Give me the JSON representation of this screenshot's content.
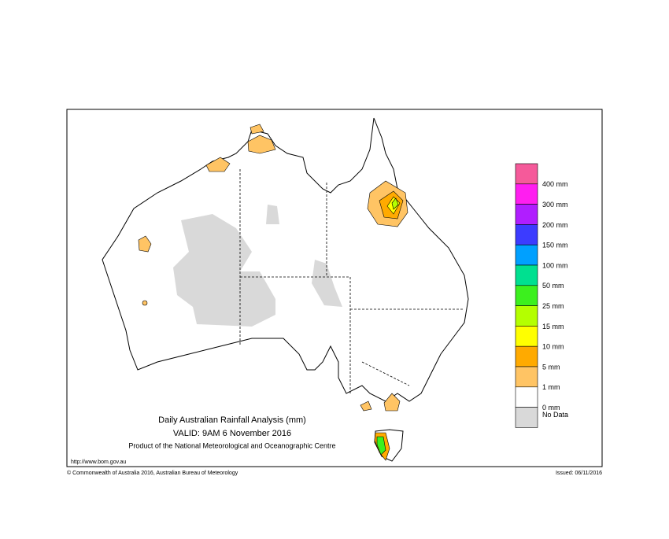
{
  "header": {
    "title": "Daily Australian Rainfall Analysis (mm)",
    "valid": "VALID: 9AM  6 November 2016",
    "product": "Product of the National Meteorological and Oceanographic Centre"
  },
  "footer": {
    "url": "http://www.bom.gov.au",
    "copyright": "© Commonwealth of Australia 2016, Australian Bureau of Meteorology",
    "issued": "Issued: 06/11/2016"
  },
  "legend": {
    "colors": [
      "#f55a9a",
      "#ff1ef0",
      "#b01eff",
      "#3c3cff",
      "#00a0ff",
      "#00e090",
      "#3cf01e",
      "#b4ff00",
      "#ffff00",
      "#ffaa00",
      "#ffc464",
      "#ffffff",
      "#d9d9d9"
    ],
    "boundary_labels": [
      "400 mm",
      "300 mm",
      "200 mm",
      "150 mm",
      "100 mm",
      "50 mm",
      "25 mm",
      "15 mm",
      "10 mm",
      "5 mm",
      "1 mm",
      "0 mm"
    ],
    "no_data_label": "No Data"
  }
}
